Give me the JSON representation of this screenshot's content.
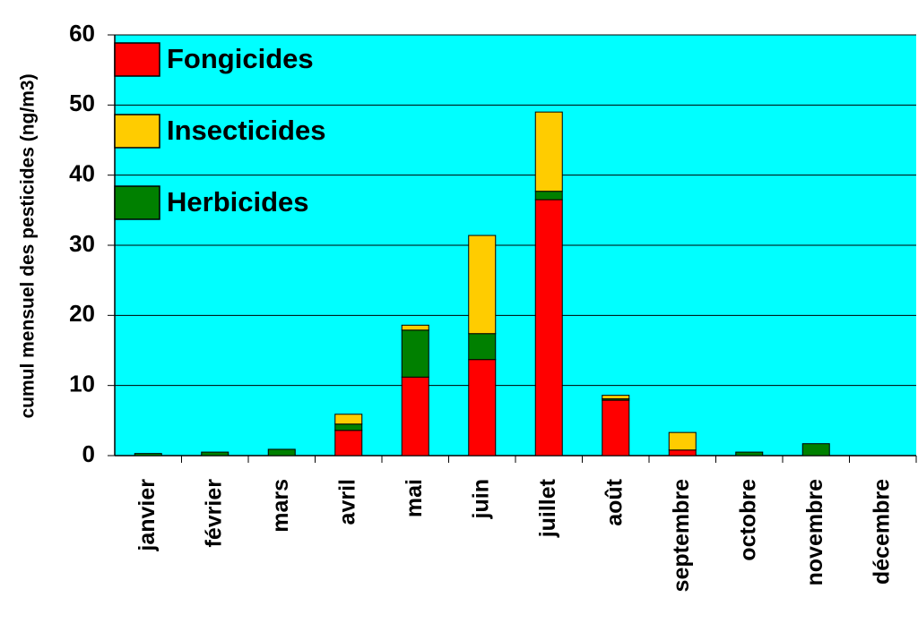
{
  "chart_data": {
    "type": "stacked_bar",
    "y_label": "cumul mensuel des pesticides (ng/m3)",
    "categories": [
      "janvier",
      "février",
      "mars",
      "avril",
      "mai",
      "juin",
      "juillet",
      "août",
      "septembre",
      "octobre",
      "novembre",
      "décembre"
    ],
    "series": [
      {
        "name": "Fongicides",
        "color": "#ff0000",
        "values": [
          0,
          0,
          0,
          3.6,
          11.2,
          13.7,
          36.5,
          7.9,
          0.8,
          0,
          0,
          0
        ]
      },
      {
        "name": "Herbicides",
        "color": "#008000",
        "values": [
          0.3,
          0.5,
          0.9,
          0.9,
          6.7,
          3.7,
          1.2,
          0.2,
          0,
          0.5,
          1.7,
          0
        ]
      },
      {
        "name": "Insecticides",
        "color": "#ffcc00",
        "values": [
          0,
          0,
          0,
          1.4,
          0.7,
          14.0,
          11.3,
          0.5,
          2.5,
          0,
          0,
          0
        ]
      }
    ],
    "ylim": [
      0,
      60
    ],
    "yticks": [
      0,
      10,
      20,
      30,
      40,
      50,
      60
    ],
    "grid": true,
    "plot_background": "#00ffff",
    "legend": "upper left"
  }
}
